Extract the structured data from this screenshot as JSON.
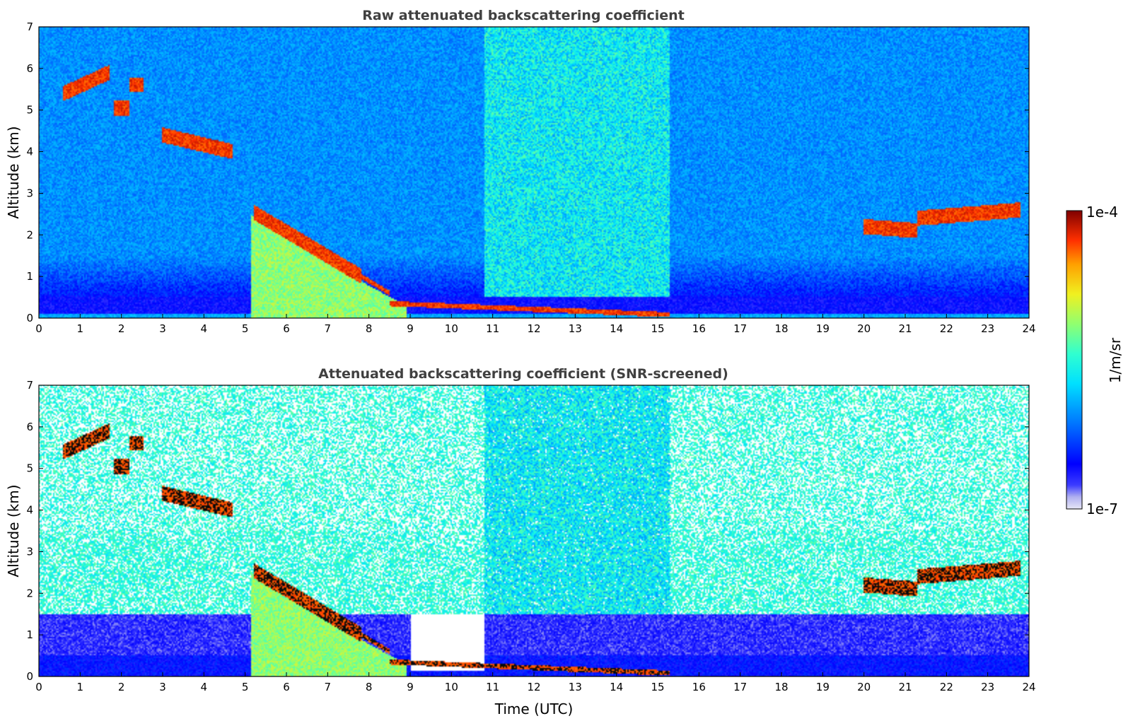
{
  "chart_data": [
    {
      "type": "heatmap",
      "title": "Raw attenuated backscattering coefficient",
      "xlabel": "",
      "ylabel": "Altitude (km)",
      "xlim": [
        0,
        24
      ],
      "ylim": [
        0,
        7
      ],
      "xticks": [
        "0",
        "1",
        "2",
        "3",
        "4",
        "5",
        "6",
        "7",
        "8",
        "9",
        "10",
        "11",
        "12",
        "13",
        "14",
        "15",
        "16",
        "17",
        "18",
        "19",
        "20",
        "21",
        "22",
        "23",
        "24"
      ],
      "yticks": [
        "0",
        "1",
        "2",
        "3",
        "4",
        "5",
        "6",
        "7"
      ],
      "screened": false,
      "features": {
        "cloud_segments": [
          {
            "x": [
              0.6,
              1.7
            ],
            "y": [
              5.4,
              5.9
            ]
          },
          {
            "x": [
              1.8,
              2.2
            ],
            "y": [
              5.05,
              5.05
            ]
          },
          {
            "x": [
              2.2,
              2.55
            ],
            "y": [
              5.6,
              5.6
            ]
          },
          {
            "x": [
              3.0,
              4.7
            ],
            "y": [
              4.4,
              4.0
            ]
          },
          {
            "x": [
              5.2,
              8.5
            ],
            "y": [
              2.55,
              0.6
            ]
          },
          {
            "x": [
              8.5,
              15.3
            ],
            "y": [
              0.35,
              0.08
            ]
          },
          {
            "x": [
              20.0,
              21.3
            ],
            "y": [
              2.2,
              2.1
            ]
          },
          {
            "x": [
              21.3,
              23.8
            ],
            "y": [
              2.4,
              2.6
            ]
          }
        ],
        "dense_precipitation": {
          "x": [
            5.15,
            8.9
          ],
          "top_km": [
            2.5,
            0.3
          ]
        },
        "boundary_layer_top_km": 0.5
      }
    },
    {
      "type": "heatmap",
      "title": "Attenuated backscattering coefficient (SNR-screened)",
      "xlabel": "Time (UTC)",
      "ylabel": "Altitude (km)",
      "xlim": [
        0,
        24
      ],
      "ylim": [
        0,
        7
      ],
      "xticks": [
        "0",
        "1",
        "2",
        "3",
        "4",
        "5",
        "6",
        "7",
        "8",
        "9",
        "10",
        "11",
        "12",
        "13",
        "14",
        "15",
        "16",
        "17",
        "18",
        "19",
        "20",
        "21",
        "22",
        "23",
        "24"
      ],
      "yticks": [
        "0",
        "1",
        "2",
        "3",
        "4",
        "5",
        "6",
        "7"
      ],
      "screened": true,
      "features": {
        "boundary_layer_top_km": 1.5
      }
    }
  ],
  "colorbar": {
    "label": "1/m/sr",
    "max_label": "1e-4",
    "min_label": "1e-7",
    "scale": "log",
    "range": [
      1e-07,
      0.0001
    ],
    "colormap": "jet"
  }
}
